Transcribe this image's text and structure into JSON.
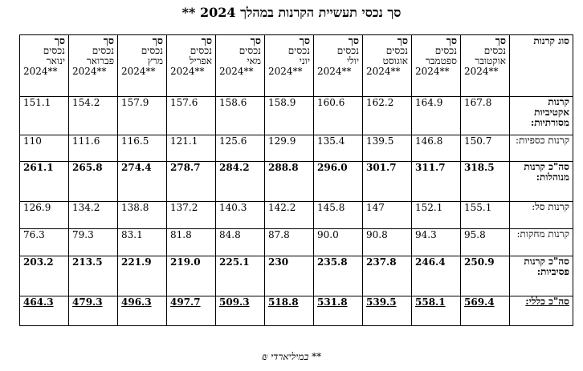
{
  "title": "סך נכסי תעשיית הקרנות במהלך 2024 **",
  "table": {
    "type_header": "סוג קרנות",
    "columns": [
      {
        "l1": "סך",
        "l2": "נכסים",
        "l3": "אוקטובר",
        "yr": "2024**"
      },
      {
        "l1": "סך",
        "l2": "נכסים",
        "l3": "ספטמבר",
        "yr": "2024**"
      },
      {
        "l1": "סך",
        "l2": "נכסים",
        "l3": "אוגוסט",
        "yr": "2024**"
      },
      {
        "l1": "סך",
        "l2": "נכסים",
        "l3": "יולי",
        "yr": "2024**"
      },
      {
        "l1": "סך",
        "l2": "נכסים",
        "l3": "יוני",
        "yr": "2024**"
      },
      {
        "l1": "סך",
        "l2": "נכסים",
        "l3": "מאי",
        "yr": "2024**"
      },
      {
        "l1": "סך",
        "l2": "נכסים",
        "l3": "אפריל",
        "yr": "2024**"
      },
      {
        "l1": "סך",
        "l2": "נכסים",
        "l3": "מרץ",
        "yr": "2024**"
      },
      {
        "l1": "סך",
        "l2": "נכסים",
        "l3": "פברואר",
        "yr": "2024**"
      },
      {
        "l1": "סך",
        "l2": "נכסים",
        "l3": "ינואר",
        "yr": "2024**"
      }
    ],
    "rows": [
      {
        "label": "קרנות אקטיביות מסורתיות:",
        "values": [
          "167.8",
          "164.9",
          "162.2",
          "160.6",
          "158.9",
          "158.6",
          "157.6",
          "157.9",
          "154.2",
          "151.1"
        ]
      },
      {
        "label": "קרנות כספיות:",
        "values": [
          "150.7",
          "146.8",
          "139.5",
          "135.4",
          "129.9",
          "125.6",
          "121.1",
          "116.5",
          "111.6",
          "110"
        ]
      },
      {
        "label": "סה\"כ קרנות מנוהלות:",
        "values": [
          "318.5",
          "311.7",
          "301.7",
          "296.0",
          "288.8",
          "284.2",
          "278.7",
          "274.4",
          "265.8",
          "261.1"
        ]
      },
      {
        "label": "קרנות סל:",
        "values": [
          "155.1",
          "152.1",
          "147",
          "145.8",
          "142.2",
          "140.3",
          "137.2",
          "138.8",
          "134.2",
          "126.9"
        ]
      },
      {
        "label": "קרנות מחקות:",
        "values": [
          "95.8",
          "94.3",
          "90.8",
          "90.0",
          "87.8",
          "84.8",
          "81.8",
          "83.1",
          "79.3",
          "76.3"
        ]
      },
      {
        "label": "סה\"כ קרנות פסיביות:",
        "values": [
          "250.9",
          "246.4",
          "237.8",
          "235.8",
          "230",
          "225.1",
          "219.0",
          "221.9",
          "213.5",
          "203.2"
        ]
      },
      {
        "label": "סה\"כ כללי:",
        "values": [
          "569.4",
          "558.1",
          "539.5",
          "531.8",
          "518.8",
          "509.3",
          "497.7",
          "496.3",
          "479.3",
          "464.3"
        ]
      }
    ]
  },
  "footer": "** במיליארדי ₪"
}
